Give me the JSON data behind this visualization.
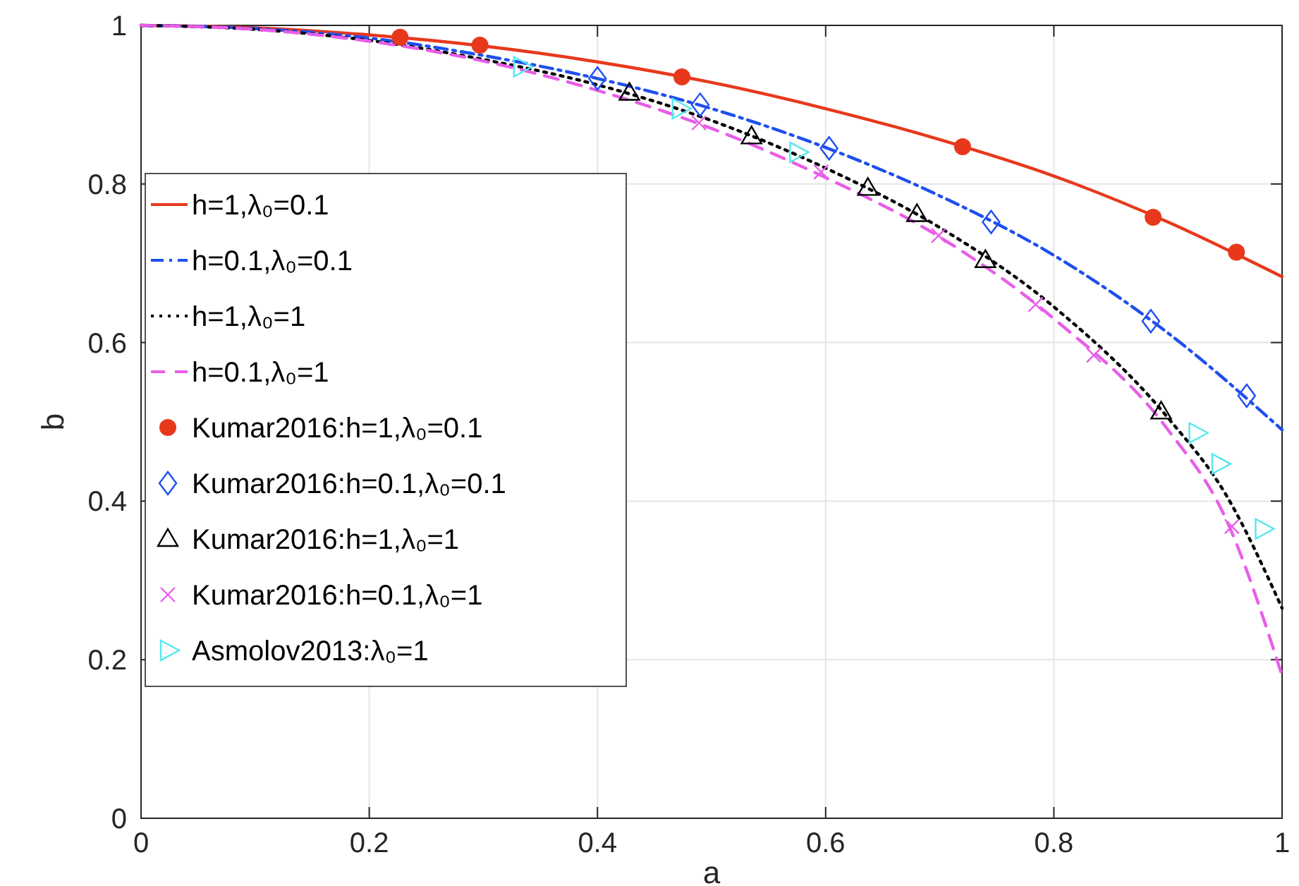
{
  "chart_data": {
    "type": "line",
    "xlabel": "a",
    "ylabel": "b",
    "xlim": [
      0,
      1
    ],
    "ylim": [
      0,
      1
    ],
    "xticks": [
      0,
      0.2,
      0.4,
      0.6,
      0.8,
      1
    ],
    "yticks": [
      0,
      0.2,
      0.4,
      0.6,
      0.8,
      1
    ],
    "grid": true,
    "legend": "left",
    "series": [
      {
        "name": "h=1,λ₀=0.1",
        "line_style": "solid",
        "color": "#e8381c",
        "x": [
          0,
          0.1,
          0.2,
          0.3,
          0.4,
          0.5,
          0.6,
          0.7,
          0.8,
          0.9,
          1
        ],
        "values": [
          1,
          0.997,
          0.988,
          0.974,
          0.954,
          0.928,
          0.895,
          0.856,
          0.81,
          0.752,
          0.683
        ]
      },
      {
        "name": "h=0.1,λ₀=0.1",
        "line_style": "dashdot",
        "color": "#1f4ff0",
        "x": [
          0,
          0.1,
          0.2,
          0.3,
          0.4,
          0.5,
          0.6,
          0.7,
          0.8,
          0.9,
          1
        ],
        "values": [
          1,
          0.996,
          0.984,
          0.962,
          0.933,
          0.895,
          0.846,
          0.785,
          0.71,
          0.612,
          0.49
        ]
      },
      {
        "name": "h=1,λ₀=1",
        "line_style": "dotted",
        "color": "#000000",
        "x": [
          0,
          0.1,
          0.2,
          0.3,
          0.4,
          0.5,
          0.6,
          0.7,
          0.8,
          0.9,
          0.95,
          1
        ],
        "values": [
          1,
          0.995,
          0.981,
          0.957,
          0.925,
          0.88,
          0.82,
          0.745,
          0.645,
          0.505,
          0.41,
          0.265
        ]
      },
      {
        "name": "h=0.1,λ₀=1",
        "line_style": "dashed",
        "color": "#e85ee8",
        "x": [
          0,
          0.1,
          0.2,
          0.3,
          0.4,
          0.5,
          0.6,
          0.7,
          0.8,
          0.9,
          0.95,
          1
        ],
        "values": [
          1,
          0.995,
          0.98,
          0.955,
          0.918,
          0.87,
          0.808,
          0.733,
          0.63,
          0.49,
          0.38,
          0.18
        ]
      },
      {
        "name": "Kumar2016:h=1,λ₀=0.1",
        "type": "scatter",
        "marker": "circle",
        "color": "#e8381c",
        "x": [
          0.227,
          0.297,
          0.474,
          0.72,
          0.887,
          0.96
        ],
        "values": [
          0.985,
          0.975,
          0.935,
          0.847,
          0.758,
          0.714
        ]
      },
      {
        "name": "Kumar2016:h=0.1,λ₀=0.1",
        "type": "scatter",
        "marker": "diamond",
        "color": "#1f4ff0",
        "x": [
          0.4,
          0.49,
          0.603,
          0.745,
          0.885,
          0.969
        ],
        "values": [
          0.933,
          0.9,
          0.845,
          0.752,
          0.627,
          0.533
        ]
      },
      {
        "name": "Kumar2016:h=1,λ₀=1",
        "type": "scatter",
        "marker": "triangle",
        "color": "#000000",
        "x": [
          0.428,
          0.535,
          0.637,
          0.68,
          0.74,
          0.894
        ],
        "values": [
          0.915,
          0.86,
          0.795,
          0.762,
          0.704,
          0.513
        ]
      },
      {
        "name": "Kumar2016:h=0.1,λ₀=1",
        "type": "scatter",
        "marker": "cross",
        "color": "#e85ee8",
        "x": [
          0.489,
          0.596,
          0.699,
          0.784,
          0.835,
          0.956
        ],
        "values": [
          0.877,
          0.815,
          0.735,
          0.648,
          0.584,
          0.368
        ]
      },
      {
        "name": "Asmolov2013:λ₀=1",
        "type": "scatter",
        "marker": "triangle-right",
        "color": "#55e8ee",
        "x": [
          0.333,
          0.472,
          0.575,
          0.925,
          0.945,
          0.983
        ],
        "values": [
          0.948,
          0.895,
          0.84,
          0.486,
          0.447,
          0.365
        ]
      }
    ]
  }
}
